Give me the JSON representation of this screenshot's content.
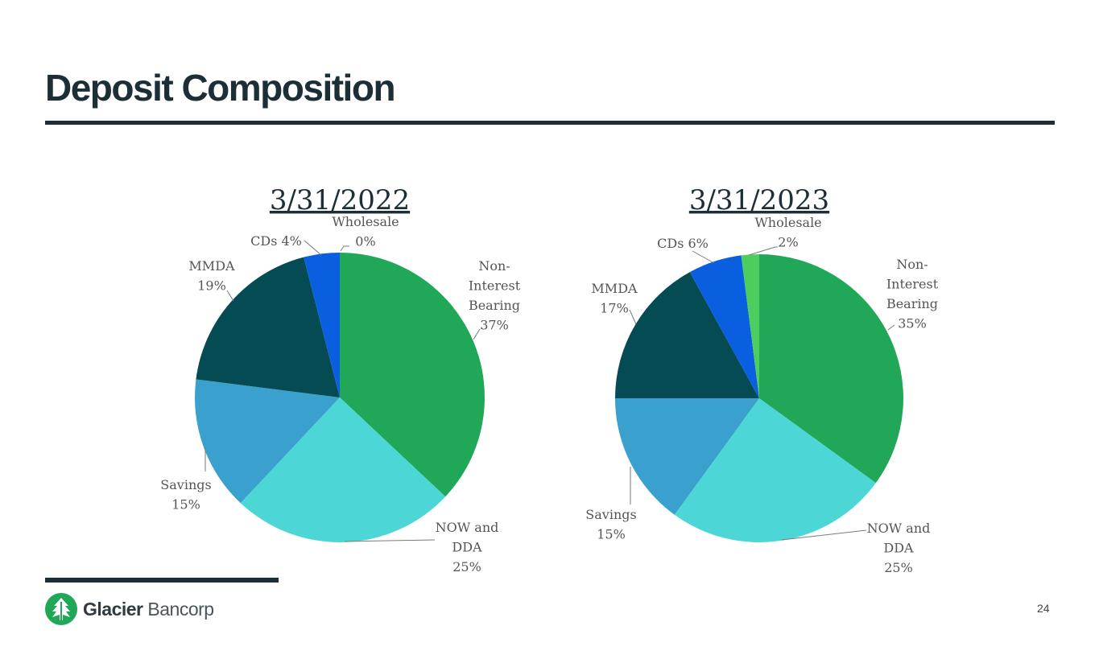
{
  "slide": {
    "title": "Deposit Composition",
    "page_number": "24"
  },
  "logo": {
    "name_bold": "Glacier",
    "name_light": " Bancorp",
    "icon": "glacier-tree-icon",
    "color": "#20a758"
  },
  "colors": {
    "title": "#1c2e36",
    "non_interest_bearing": "#20a758",
    "now_and_dda": "#4dd6d6",
    "savings": "#3aa1cf",
    "mmda": "#044b54",
    "cds": "#0a5fe0",
    "wholesale": "#4ccd5e"
  },
  "chart_data": [
    {
      "type": "pie",
      "title": "3/31/2022",
      "slices": [
        {
          "key": "non_interest_bearing",
          "label_lines": [
            "Non-",
            "Interest",
            "Bearing",
            "37%"
          ],
          "value": 37
        },
        {
          "key": "now_and_dda",
          "label_lines": [
            "NOW and",
            "DDA",
            "25%"
          ],
          "value": 25
        },
        {
          "key": "savings",
          "label_lines": [
            "Savings",
            "15%"
          ],
          "value": 15
        },
        {
          "key": "mmda",
          "label_lines": [
            "MMDA",
            "19%"
          ],
          "value": 19
        },
        {
          "key": "cds",
          "label_lines": [
            "CDs 4%"
          ],
          "value": 4
        },
        {
          "key": "wholesale",
          "label_lines": [
            "Wholesale",
            "0%"
          ],
          "value": 0
        }
      ]
    },
    {
      "type": "pie",
      "title": "3/31/2023",
      "slices": [
        {
          "key": "non_interest_bearing",
          "label_lines": [
            "Non-",
            "Interest",
            "Bearing",
            "35%"
          ],
          "value": 35
        },
        {
          "key": "now_and_dda",
          "label_lines": [
            "NOW and",
            "DDA",
            "25%"
          ],
          "value": 25
        },
        {
          "key": "savings",
          "label_lines": [
            "Savings",
            "15%"
          ],
          "value": 15
        },
        {
          "key": "mmda",
          "label_lines": [
            "MMDA",
            "17%"
          ],
          "value": 17
        },
        {
          "key": "cds",
          "label_lines": [
            "CDs 6%"
          ],
          "value": 6
        },
        {
          "key": "wholesale",
          "label_lines": [
            "Wholesale",
            "2%"
          ],
          "value": 2
        }
      ]
    }
  ]
}
